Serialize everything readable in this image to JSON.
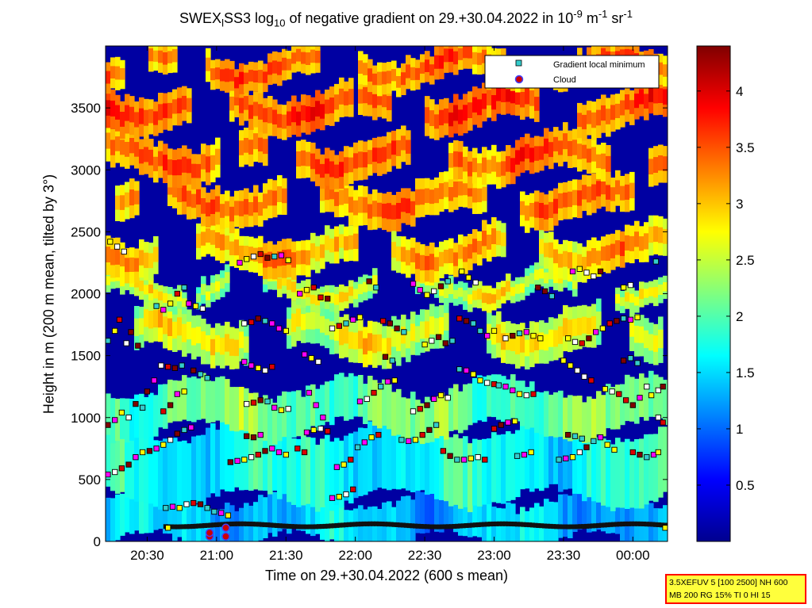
{
  "title": {
    "prefix": "SWEX",
    "sub1": "l",
    "mid": "SS3 log",
    "sub2": "10",
    "rest": " of negative gradient on 29.+30.04.2022 in 10",
    "sup1": "-9",
    "unit1": " m",
    "sup2": "-1",
    "unit2": " sr",
    "sup3": "-1"
  },
  "info_box": {
    "line1": "3.5XEFUV 5 [100 2500] NH 600",
    "line2": "MB 200 RG 15% TI 0 HI 15"
  },
  "chart_data": {
    "type": "heatmap",
    "xlabel": "Time on 29.+30.04.2022 (600 s mean)",
    "ylabel": "Height in m (200 m mean, tilted by 3°)",
    "x_ticks": [
      "20:30",
      "21:00",
      "21:30",
      "22:00",
      "22:30",
      "23:00",
      "23:30",
      "00:00"
    ],
    "x_tick_minutes": [
      30,
      60,
      90,
      120,
      150,
      180,
      210,
      240
    ],
    "xlim_minutes_after_20_00": [
      12,
      255
    ],
    "y_ticks": [
      0,
      500,
      1000,
      1500,
      2000,
      2500,
      3000,
      3500
    ],
    "ylim": [
      0,
      4000
    ],
    "colorbar": {
      "ticks": [
        "0.5",
        "1",
        "1.5",
        "2",
        "2.5",
        "3",
        "3.5",
        "4"
      ],
      "tick_values": [
        0.5,
        1,
        1.5,
        2,
        2.5,
        3,
        3.5,
        4
      ],
      "range": [
        0,
        4.4
      ],
      "colormap": "jet"
    },
    "legend": {
      "position": "top-right",
      "entries": [
        {
          "label": "Gradient local minimum",
          "marker": "square",
          "color": "#33cccc"
        },
        {
          "label": "Cloud",
          "marker": "circle",
          "color": "#cc0000",
          "edge": "#4040ff"
        }
      ]
    },
    "layers": {
      "comment": "",
      "bands_m": [
        {
          "h0": 0,
          "h1": 350,
          "level": 1.4
        },
        {
          "h0": 350,
          "h1": 900,
          "level": 1.7
        },
        {
          "h0": 900,
          "h1": 1250,
          "level": 2.1
        },
        {
          "h0": 1500,
          "h1": 1850,
          "level": 2.3
        },
        {
          "h0": 1950,
          "h1": 2150,
          "level": 2.2
        },
        {
          "h0": 2200,
          "h1": 2500,
          "level": 2.7
        },
        {
          "h0": 2600,
          "h1": 2900,
          "level": 2.9
        },
        {
          "h0": 2950,
          "h1": 3250,
          "level": 3.0
        },
        {
          "h0": 3350,
          "h1": 3650,
          "level": 3.1
        },
        {
          "h0": 3700,
          "h1": 3950,
          "level": 3.0
        }
      ]
    },
    "point_series": [
      {
        "name": "Gradient local minimum",
        "points": [
          [
            13,
            1620
          ],
          [
            16,
            1700
          ],
          [
            18,
            1790
          ],
          [
            21,
            1600
          ],
          [
            23,
            1690
          ],
          [
            26,
            1580
          ],
          [
            13,
            940
          ],
          [
            16,
            980
          ],
          [
            19,
            1040
          ],
          [
            22,
            1000
          ],
          [
            25,
            1110
          ],
          [
            28,
            1080
          ],
          [
            13,
            540
          ],
          [
            16,
            560
          ],
          [
            19,
            590
          ],
          [
            22,
            620
          ],
          [
            25,
            680
          ],
          [
            28,
            720
          ],
          [
            14,
            2420
          ],
          [
            17,
            2380
          ],
          [
            20,
            2340
          ],
          [
            30,
            1210
          ],
          [
            33,
            1300
          ],
          [
            36,
            1420
          ],
          [
            39,
            1410
          ],
          [
            42,
            1400
          ],
          [
            45,
            1420
          ],
          [
            34,
            1900
          ],
          [
            37,
            1870
          ],
          [
            40,
            1920
          ],
          [
            43,
            2000
          ],
          [
            46,
            2050
          ],
          [
            31,
            730
          ],
          [
            34,
            750
          ],
          [
            37,
            780
          ],
          [
            40,
            820
          ],
          [
            43,
            870
          ],
          [
            46,
            900
          ],
          [
            49,
            920
          ],
          [
            37,
            1050
          ],
          [
            40,
            1100
          ],
          [
            43,
            1190
          ],
          [
            46,
            1210
          ],
          [
            50,
            1380
          ],
          [
            53,
            1350
          ],
          [
            56,
            1320
          ],
          [
            48,
            1920
          ],
          [
            51,
            1900
          ],
          [
            54,
            1880
          ],
          [
            38,
            270
          ],
          [
            41,
            280
          ],
          [
            44,
            270
          ],
          [
            47,
            300
          ],
          [
            50,
            310
          ],
          [
            53,
            300
          ],
          [
            56,
            270
          ],
          [
            59,
            240
          ],
          [
            62,
            230
          ],
          [
            65,
            210
          ],
          [
            39,
            110
          ],
          [
            70,
            2250
          ],
          [
            73,
            2280
          ],
          [
            76,
            2300
          ],
          [
            79,
            2320
          ],
          [
            82,
            2290
          ],
          [
            85,
            2300
          ],
          [
            88,
            2310
          ],
          [
            91,
            2270
          ],
          [
            72,
            1450
          ],
          [
            75,
            1420
          ],
          [
            78,
            1400
          ],
          [
            81,
            1380
          ],
          [
            84,
            1410
          ],
          [
            72,
            1760
          ],
          [
            75,
            1770
          ],
          [
            78,
            1800
          ],
          [
            81,
            1780
          ],
          [
            84,
            1760
          ],
          [
            87,
            1720
          ],
          [
            90,
            1700
          ],
          [
            73,
            1110
          ],
          [
            76,
            1120
          ],
          [
            79,
            1140
          ],
          [
            82,
            1130
          ],
          [
            85,
            1080
          ],
          [
            88,
            1060
          ],
          [
            91,
            1070
          ],
          [
            66,
            640
          ],
          [
            69,
            650
          ],
          [
            72,
            660
          ],
          [
            75,
            680
          ],
          [
            78,
            700
          ],
          [
            81,
            730
          ],
          [
            84,
            750
          ],
          [
            87,
            720
          ],
          [
            90,
            700
          ],
          [
            73,
            850
          ],
          [
            76,
            840
          ],
          [
            79,
            860
          ],
          [
            96,
            2000
          ],
          [
            99,
            2030
          ],
          [
            102,
            2050
          ],
          [
            105,
            1970
          ],
          [
            108,
            1960
          ],
          [
            98,
            1510
          ],
          [
            101,
            1480
          ],
          [
            104,
            1450
          ],
          [
            100,
            1200
          ],
          [
            103,
            1100
          ],
          [
            106,
            1000
          ],
          [
            99,
            880
          ],
          [
            102,
            900
          ],
          [
            105,
            910
          ],
          [
            108,
            890
          ],
          [
            95,
            750
          ],
          [
            98,
            720
          ],
          [
            110,
            1720
          ],
          [
            113,
            1740
          ],
          [
            116,
            1760
          ],
          [
            119,
            1790
          ],
          [
            122,
            1810
          ],
          [
            110,
            350
          ],
          [
            113,
            360
          ],
          [
            116,
            380
          ],
          [
            119,
            420
          ],
          [
            112,
            600
          ],
          [
            115,
            620
          ],
          [
            118,
            660
          ],
          [
            121,
            760
          ],
          [
            124,
            800
          ],
          [
            127,
            840
          ],
          [
            130,
            860
          ],
          [
            122,
            1130
          ],
          [
            125,
            1150
          ],
          [
            128,
            1200
          ],
          [
            131,
            1250
          ],
          [
            134,
            1290
          ],
          [
            137,
            1300
          ],
          [
            126,
            2100
          ],
          [
            129,
            2050
          ],
          [
            132,
            1780
          ],
          [
            135,
            1760
          ],
          [
            138,
            1720
          ],
          [
            141,
            1690
          ],
          [
            133,
            1490
          ],
          [
            136,
            1460
          ],
          [
            140,
            820
          ],
          [
            143,
            810
          ],
          [
            146,
            820
          ],
          [
            149,
            860
          ],
          [
            152,
            900
          ],
          [
            155,
            940
          ],
          [
            145,
            1050
          ],
          [
            148,
            1070
          ],
          [
            151,
            1100
          ],
          [
            154,
            1150
          ],
          [
            157,
            1180
          ],
          [
            160,
            1160
          ],
          [
            145,
            2080
          ],
          [
            148,
            2030
          ],
          [
            151,
            1990
          ],
          [
            154,
            2020
          ],
          [
            157,
            2060
          ],
          [
            160,
            2100
          ],
          [
            150,
            1590
          ],
          [
            153,
            1620
          ],
          [
            156,
            1650
          ],
          [
            159,
            1600
          ],
          [
            162,
            1620
          ],
          [
            158,
            730
          ],
          [
            161,
            690
          ],
          [
            164,
            660
          ],
          [
            167,
            660
          ],
          [
            170,
            670
          ],
          [
            173,
            680
          ],
          [
            176,
            660
          ],
          [
            165,
            1390
          ],
          [
            168,
            1380
          ],
          [
            171,
            1350
          ],
          [
            174,
            1300
          ],
          [
            177,
            1280
          ],
          [
            180,
            1270
          ],
          [
            165,
            1800
          ],
          [
            168,
            1780
          ],
          [
            171,
            1760
          ],
          [
            174,
            1700
          ],
          [
            177,
            1660
          ],
          [
            180,
            1700
          ],
          [
            166,
            2180
          ],
          [
            169,
            2130
          ],
          [
            172,
            2090
          ],
          [
            180,
            910
          ],
          [
            183,
            940
          ],
          [
            186,
            960
          ],
          [
            189,
            970
          ],
          [
            182,
            1260
          ],
          [
            185,
            1250
          ],
          [
            188,
            1220
          ],
          [
            191,
            1190
          ],
          [
            194,
            1180
          ],
          [
            197,
            1190
          ],
          [
            185,
            1640
          ],
          [
            188,
            1660
          ],
          [
            191,
            1680
          ],
          [
            194,
            1690
          ],
          [
            197,
            1660
          ],
          [
            200,
            1640
          ],
          [
            190,
            690
          ],
          [
            193,
            700
          ],
          [
            196,
            720
          ],
          [
            199,
            2050
          ],
          [
            202,
            2020
          ],
          [
            205,
            1980
          ],
          [
            208,
            660
          ],
          [
            211,
            670
          ],
          [
            214,
            680
          ],
          [
            217,
            720
          ],
          [
            220,
            760
          ],
          [
            223,
            810
          ],
          [
            226,
            840
          ],
          [
            229,
            780
          ],
          [
            232,
            740
          ],
          [
            212,
            860
          ],
          [
            215,
            850
          ],
          [
            218,
            830
          ],
          [
            210,
            1460
          ],
          [
            213,
            1420
          ],
          [
            216,
            1380
          ],
          [
            219,
            1330
          ],
          [
            222,
            1300
          ],
          [
            212,
            1640
          ],
          [
            215,
            1610
          ],
          [
            218,
            1600
          ],
          [
            221,
            1640
          ],
          [
            224,
            1690
          ],
          [
            227,
            1720
          ],
          [
            230,
            1760
          ],
          [
            233,
            1780
          ],
          [
            236,
            1800
          ],
          [
            239,
            1790
          ],
          [
            242,
            1810
          ],
          [
            214,
            2180
          ],
          [
            217,
            2200
          ],
          [
            220,
            2170
          ],
          [
            223,
            2140
          ],
          [
            226,
            2180
          ],
          [
            228,
            1230
          ],
          [
            231,
            1210
          ],
          [
            234,
            1190
          ],
          [
            237,
            1140
          ],
          [
            240,
            1100
          ],
          [
            243,
            1160
          ],
          [
            246,
            1250
          ],
          [
            240,
            720
          ],
          [
            243,
            700
          ],
          [
            246,
            680
          ],
          [
            249,
            700
          ],
          [
            251,
            720
          ],
          [
            236,
            1460
          ],
          [
            239,
            1480
          ],
          [
            242,
            1440
          ],
          [
            236,
            2050
          ],
          [
            239,
            2070
          ],
          [
            250,
            2260
          ],
          [
            248,
            1180
          ],
          [
            251,
            1220
          ],
          [
            253,
            1250
          ],
          [
            251,
            1000
          ],
          [
            253,
            960
          ],
          [
            254,
            110
          ]
        ]
      },
      {
        "name": "Cloud",
        "points": [
          [
            57,
            40
          ],
          [
            57,
            70
          ],
          [
            64,
            40
          ],
          [
            64,
            110
          ]
        ]
      }
    ],
    "surface_trace_m": 130
  }
}
